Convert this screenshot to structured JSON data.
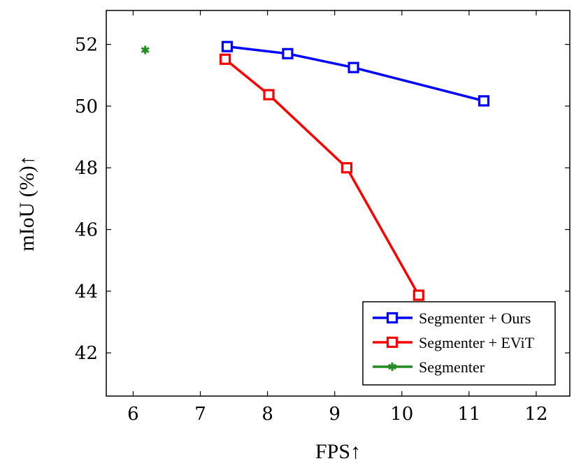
{
  "chart_data": {
    "type": "line",
    "xlabel": "FPS↑",
    "ylabel": "mIoU (%)↑",
    "xlim": [
      5.6,
      12.5
    ],
    "ylim": [
      40.6,
      53.1
    ],
    "xticks": [
      6,
      7,
      8,
      9,
      10,
      11,
      12
    ],
    "yticks": [
      42,
      44,
      46,
      48,
      50,
      52
    ],
    "grid": false,
    "legend_position": "bottom-right",
    "series": [
      {
        "name": "Segmenter + Ours",
        "color": "#0000ff",
        "marker": "square",
        "line": true,
        "points": [
          {
            "x": 7.4,
            "y": 51.93
          },
          {
            "x": 8.3,
            "y": 51.7
          },
          {
            "x": 9.28,
            "y": 51.25
          },
          {
            "x": 11.22,
            "y": 50.17
          }
        ]
      },
      {
        "name": "Segmenter + EViT",
        "color": "#ff0000",
        "marker": "square",
        "line": true,
        "points": [
          {
            "x": 7.37,
            "y": 51.52
          },
          {
            "x": 8.02,
            "y": 50.37
          },
          {
            "x": 9.18,
            "y": 48.0
          },
          {
            "x": 10.25,
            "y": 43.87
          }
        ]
      },
      {
        "name": "Segmenter",
        "color": "#228b22",
        "marker": "asterisk",
        "line": false,
        "points": [
          {
            "x": 6.18,
            "y": 51.82
          }
        ]
      }
    ]
  }
}
